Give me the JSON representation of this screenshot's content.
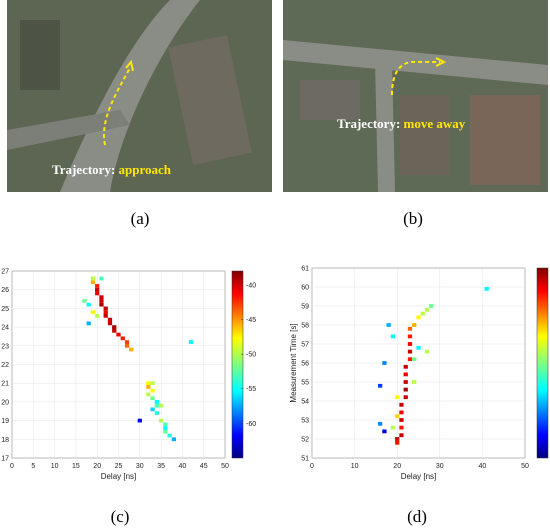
{
  "images": [
    {
      "caption": "(a)",
      "label_prefix": "Trajectory:",
      "label_action": "approach"
    },
    {
      "caption": "(b)",
      "label_prefix": "Trajectory:",
      "label_action": "move away"
    }
  ],
  "chart_data": [
    {
      "type": "heatmap",
      "caption": "(c)",
      "xlabel": "Delay [ns]",
      "ylabel": "Measurement Time [s]",
      "xlim": [
        0,
        50
      ],
      "xticks": [
        0,
        5,
        10,
        15,
        20,
        25,
        30,
        35,
        40,
        45,
        50
      ],
      "ylim": [
        17,
        27
      ],
      "yticks": [
        17,
        18,
        19,
        20,
        21,
        22,
        23,
        24,
        25,
        26,
        27
      ],
      "clim": [
        -65,
        -38
      ],
      "cticks": [
        -40,
        -45,
        -50,
        -55,
        -60
      ],
      "grid": true,
      "x": [
        19,
        19,
        20,
        20,
        20,
        21,
        21,
        21,
        22,
        22,
        22,
        23,
        23,
        24,
        24,
        25,
        26,
        27,
        27,
        28,
        18,
        17,
        19,
        21,
        18,
        42,
        20,
        32,
        33,
        32,
        33,
        32,
        33,
        34,
        34,
        33,
        34,
        35,
        36,
        36,
        36,
        37,
        38,
        30,
        35
      ],
      "y": [
        26.6,
        26.4,
        26.2,
        26.0,
        25.8,
        25.6,
        25.4,
        25.2,
        25.0,
        24.8,
        24.6,
        24.4,
        24.2,
        24.0,
        23.8,
        23.6,
        23.4,
        23.2,
        23.0,
        22.8,
        25.2,
        25.4,
        24.8,
        26.6,
        24.2,
        23.2,
        24.6,
        21.0,
        21.0,
        20.8,
        20.6,
        20.4,
        20.2,
        20.0,
        19.8,
        19.6,
        19.4,
        19.0,
        18.8,
        18.6,
        18.4,
        18.2,
        18.0,
        19.0,
        19.8
      ],
      "values": [
        -50,
        -46,
        -42,
        -40,
        -41,
        -40,
        -40,
        -39,
        -40,
        -41,
        -40,
        -40,
        -40,
        -39,
        -40,
        -41,
        -42,
        -43,
        -44,
        -46,
        -55,
        -52,
        -48,
        -53,
        -57,
        -55,
        -50,
        -48,
        -50,
        -46,
        -48,
        -50,
        -52,
        -55,
        -53,
        -56,
        -54,
        -50,
        -53,
        -55,
        -52,
        -54,
        -57,
        -62,
        -50
      ]
    },
    {
      "type": "heatmap",
      "caption": "(d)",
      "xlabel": "Delay [ns]",
      "ylabel": "Measurement Time [s]",
      "xlim": [
        0,
        50
      ],
      "xticks": [
        0,
        10,
        20,
        30,
        40,
        50
      ],
      "ylim": [
        51,
        61
      ],
      "yticks": [
        51,
        52,
        53,
        54,
        55,
        56,
        57,
        58,
        59,
        60,
        61
      ],
      "clim": [
        -65,
        -38
      ],
      "grid": true,
      "x": [
        20,
        20,
        21,
        21,
        21,
        21,
        21,
        22,
        22,
        22,
        22,
        22,
        23,
        23,
        23,
        23,
        23,
        24,
        25,
        26,
        27,
        28,
        19,
        20,
        20,
        24,
        24,
        25,
        27,
        19,
        17,
        16,
        16,
        17,
        18,
        41
      ],
      "y": [
        51.8,
        52.0,
        52.2,
        52.6,
        53.0,
        53.4,
        53.8,
        54.2,
        54.6,
        55.0,
        55.4,
        55.8,
        56.2,
        56.6,
        57.0,
        57.4,
        57.8,
        58.0,
        58.4,
        58.6,
        58.8,
        59.0,
        52.6,
        53.2,
        54.2,
        55.0,
        56.2,
        56.8,
        56.6,
        57.4,
        56.0,
        54.8,
        52.8,
        52.4,
        58.0,
        59.9
      ],
      "values": [
        -42,
        -40,
        -40,
        -42,
        -40,
        -41,
        -40,
        -40,
        -39,
        -40,
        -41,
        -40,
        -42,
        -40,
        -41,
        -42,
        -44,
        -46,
        -48,
        -50,
        -50,
        -52,
        -50,
        -47,
        -48,
        -50,
        -52,
        -55,
        -50,
        -55,
        -58,
        -60,
        -58,
        -62,
        -57,
        -55
      ]
    }
  ]
}
